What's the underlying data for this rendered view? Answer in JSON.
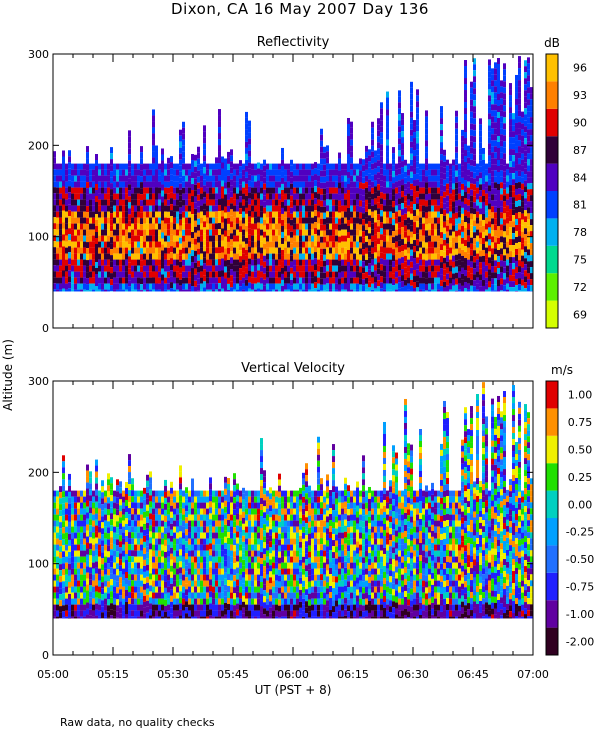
{
  "title": "Dixon, CA 16 May 2007  Day 136",
  "footer": "Raw data, no quality checks",
  "colors": {
    "axis": "#000000",
    "background": "#ffffff"
  },
  "chart_data": [
    {
      "type": "heatmap",
      "title": "Reflectivity",
      "ylabel": "Altitude (m)",
      "xlabel": "UT  (PST + 8)",
      "x_range": [
        "05:00",
        "07:00"
      ],
      "ylim": [
        0,
        300
      ],
      "yticks": [
        0,
        100,
        200,
        300
      ],
      "xtick_labels": [
        "05:00",
        "05:15",
        "05:30",
        "05:45",
        "06:00",
        "06:15",
        "06:30",
        "06:45",
        "07:00"
      ],
      "colorbar_unit": "dB",
      "colorbar_labels": [
        "69",
        "72",
        "75",
        "78",
        "81",
        "84",
        "87",
        "90",
        "93",
        "96"
      ],
      "colorbar_values": [
        69,
        72,
        75,
        78,
        81,
        84,
        87,
        90,
        93,
        96
      ],
      "colorbar_colors": [
        "#d4ff00",
        "#5cf000",
        "#00d98f",
        "#00b0f0",
        "#0040ff",
        "#5000c0",
        "#300038",
        "#e00000",
        "#ff8000",
        "#ffc000"
      ],
      "data_bottom_altitude": 40,
      "typical_echo_top_altitude": 180,
      "max_echo_top_altitude": 300,
      "core_altitude": 105,
      "core_range_dB": [
        87,
        96
      ]
    },
    {
      "type": "heatmap",
      "title": "Vertical Velocity",
      "ylabel": "Altitude (m)",
      "xlabel": "UT  (PST + 8)",
      "x_range": [
        "05:00",
        "07:00"
      ],
      "ylim": [
        0,
        300
      ],
      "yticks": [
        0,
        100,
        200,
        300
      ],
      "xtick_labels": [
        "05:00",
        "05:15",
        "05:30",
        "05:45",
        "06:00",
        "06:15",
        "06:30",
        "06:45",
        "07:00"
      ],
      "colorbar_unit": "m/s",
      "colorbar_labels": [
        "-2.00",
        "-1.00",
        "-0.75",
        "-0.50",
        "-0.25",
        "0.00",
        "0.25",
        "0.50",
        "0.75",
        "1.00"
      ],
      "colorbar_values": [
        -2.0,
        -1.0,
        -0.75,
        -0.5,
        -0.25,
        0.0,
        0.25,
        0.5,
        0.75,
        1.0
      ],
      "colorbar_colors": [
        "#300020",
        "#6000a0",
        "#2020ff",
        "#2070ff",
        "#00a0ff",
        "#00d0c0",
        "#20e000",
        "#f0f000",
        "#ff9000",
        "#e00000"
      ],
      "data_bottom_altitude": 40,
      "typical_echo_top_altitude": 180,
      "max_echo_top_altitude": 300,
      "low_level_velocity": -1.0
    }
  ]
}
